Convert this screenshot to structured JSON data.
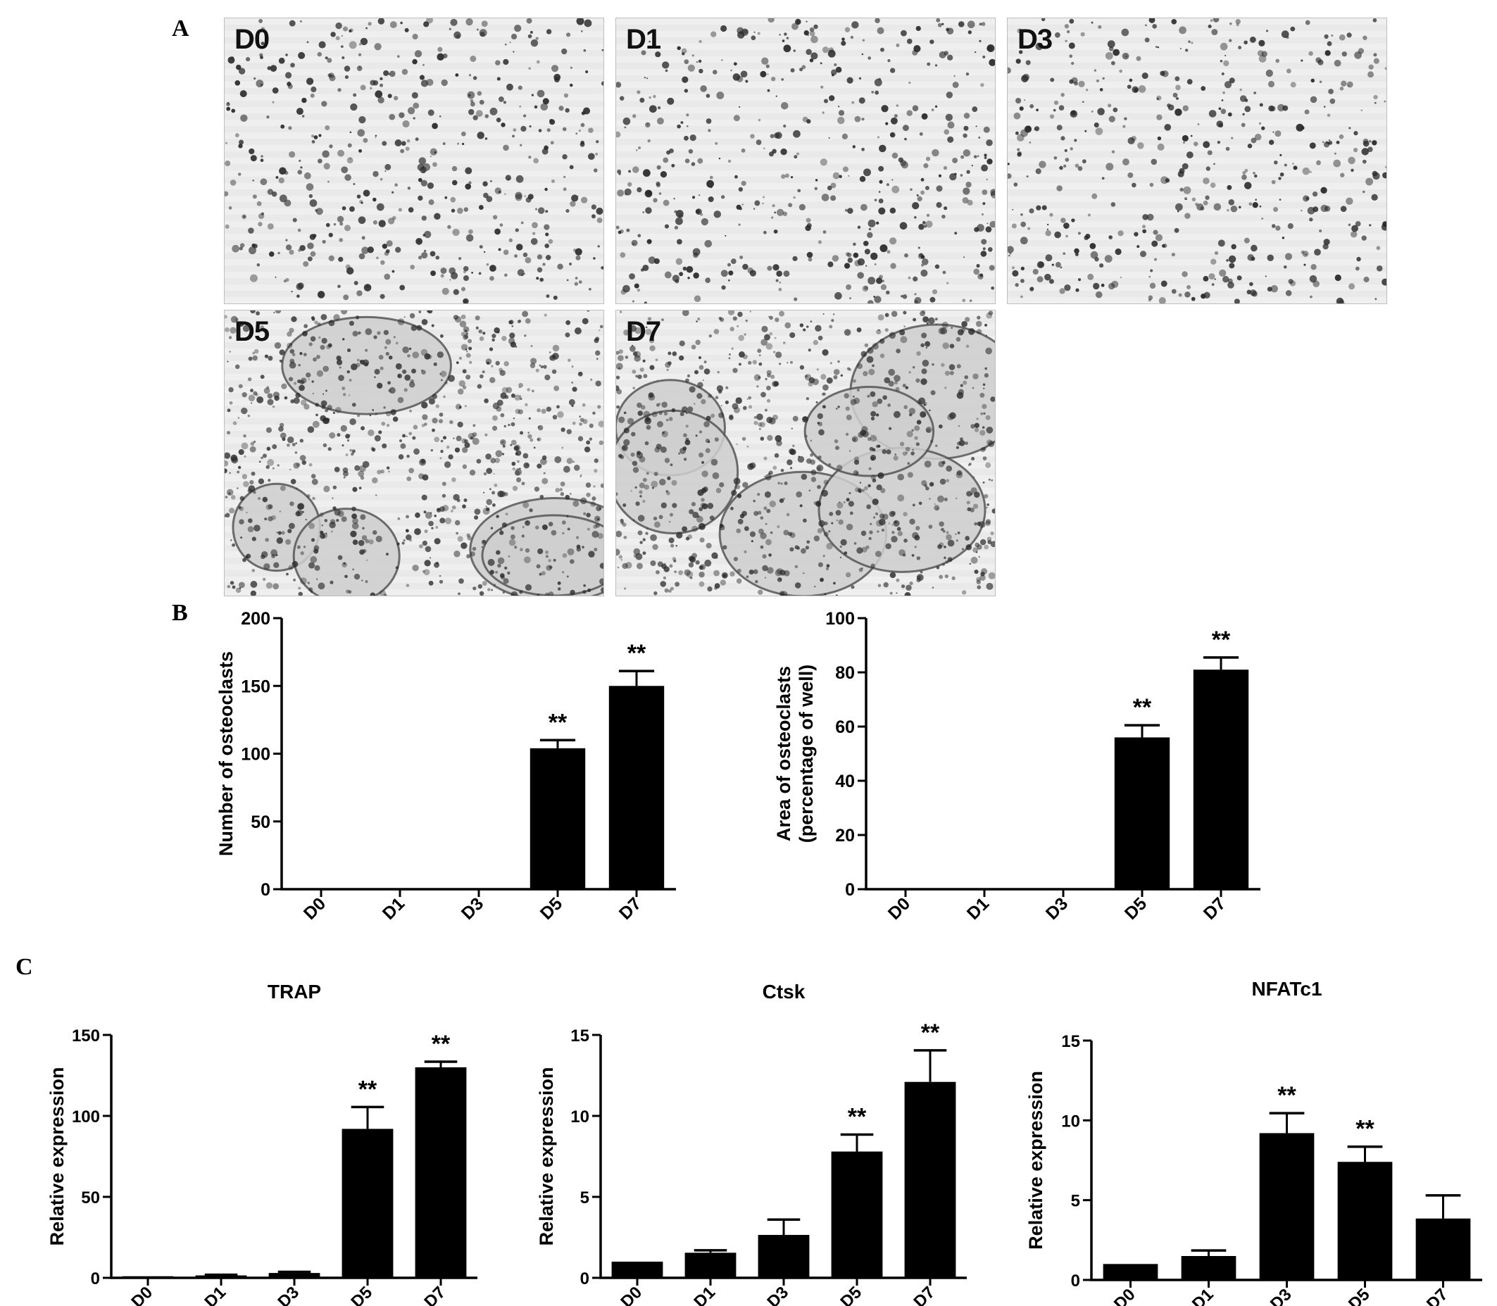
{
  "panels": {
    "a": "A",
    "b": "B",
    "c": "C"
  },
  "micrographs": [
    {
      "label": "D0",
      "stage": "sparse"
    },
    {
      "label": "D1",
      "stage": "sparse"
    },
    {
      "label": "D3",
      "stage": "sparse"
    },
    {
      "label": "D5",
      "stage": "fused"
    },
    {
      "label": "D7",
      "stage": "fused"
    }
  ],
  "colors": {
    "bar": "#000000",
    "axis": "#000000",
    "stain": "#2a2a2a",
    "background_tissue": "#e9e9e9"
  },
  "chart_data": [
    {
      "type": "bar",
      "title": "",
      "xlabel": "",
      "ylabel": "Number of osteoclasts",
      "categories": [
        "D0",
        "D1",
        "D3",
        "D5",
        "D7"
      ],
      "values": [
        0,
        0,
        0,
        104,
        150
      ],
      "errors": [
        0,
        0,
        0,
        6,
        11
      ],
      "significance": [
        "",
        "",
        "",
        "**",
        "**"
      ],
      "ylim": [
        0,
        200
      ],
      "yticks": [
        0,
        50,
        100,
        150,
        200
      ]
    },
    {
      "type": "bar",
      "title": "",
      "xlabel": "",
      "ylabel": "Area of osteoclasts",
      "ylabel2": "(percentage of well)",
      "categories": [
        "D0",
        "D1",
        "D3",
        "D5",
        "D7"
      ],
      "values": [
        0,
        0,
        0,
        56,
        81
      ],
      "errors": [
        0,
        0,
        0,
        4.5,
        4.5
      ],
      "significance": [
        "",
        "",
        "",
        "**",
        "**"
      ],
      "ylim": [
        0,
        100
      ],
      "yticks": [
        0,
        20,
        40,
        60,
        80,
        100
      ]
    },
    {
      "type": "bar",
      "title": "TRAP",
      "xlabel": "",
      "ylabel": "Relative expression",
      "categories": [
        "D0",
        "D1",
        "D3",
        "D5",
        "D7"
      ],
      "values": [
        1,
        1.5,
        3,
        92,
        130
      ],
      "errors": [
        0,
        0.4,
        0.7,
        13.5,
        3.5
      ],
      "significance": [
        "",
        "",
        "",
        "**",
        "**"
      ],
      "ylim": [
        0,
        150
      ],
      "yticks": [
        0,
        50,
        100,
        150
      ]
    },
    {
      "type": "bar",
      "title": "Ctsk",
      "xlabel": "",
      "ylabel": "Relative expression",
      "categories": [
        "D0",
        "D1",
        "D3",
        "D5",
        "D7"
      ],
      "values": [
        1,
        1.55,
        2.65,
        7.8,
        12.1
      ],
      "errors": [
        0,
        0.15,
        0.95,
        1.05,
        1.95
      ],
      "significance": [
        "",
        "",
        "",
        "**",
        "**"
      ],
      "ylim": [
        0,
        15
      ],
      "yticks": [
        0,
        5,
        10,
        15
      ]
    },
    {
      "type": "bar",
      "title": "NFATc1",
      "xlabel": "",
      "ylabel": "Relative expression",
      "categories": [
        "D0",
        "D1",
        "D3",
        "D5",
        "D7"
      ],
      "values": [
        1,
        1.5,
        9.2,
        7.4,
        3.85
      ],
      "errors": [
        0,
        0.35,
        1.25,
        0.95,
        1.45
      ],
      "significance": [
        "",
        "",
        "**",
        "**",
        ""
      ],
      "ylim": [
        0,
        15
      ],
      "yticks": [
        0,
        5,
        10,
        15
      ]
    }
  ]
}
